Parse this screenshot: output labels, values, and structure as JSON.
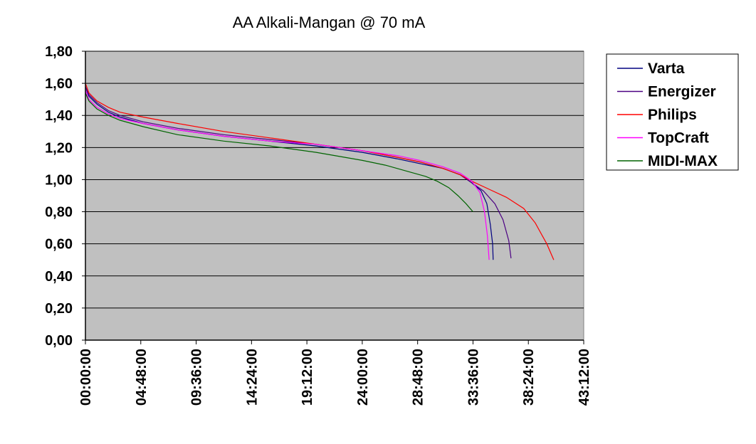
{
  "chart_data": {
    "type": "line",
    "title": "AA Alkali-Mangan @ 70 mA",
    "xlabel": "",
    "ylabel": "",
    "x_unit": "hours",
    "xlim": [
      0,
      43.2
    ],
    "ylim": [
      0,
      1.8
    ],
    "x_ticks": [
      {
        "value": 0,
        "label": "00:00:00"
      },
      {
        "value": 4.8,
        "label": "04:48:00"
      },
      {
        "value": 9.6,
        "label": "09:36:00"
      },
      {
        "value": 14.4,
        "label": "14:24:00"
      },
      {
        "value": 19.2,
        "label": "19:12:00"
      },
      {
        "value": 24.0,
        "label": "24:00:00"
      },
      {
        "value": 28.8,
        "label": "28:48:00"
      },
      {
        "value": 33.6,
        "label": "33:36:00"
      },
      {
        "value": 38.4,
        "label": "38:24:00"
      },
      {
        "value": 43.2,
        "label": "43:12:00"
      }
    ],
    "y_ticks": [
      {
        "value": 0,
        "label": "0,00"
      },
      {
        "value": 0.2,
        "label": "0,20"
      },
      {
        "value": 0.4,
        "label": "0,40"
      },
      {
        "value": 0.6,
        "label": "0,60"
      },
      {
        "value": 0.8,
        "label": "0,80"
      },
      {
        "value": 1.0,
        "label": "1,00"
      },
      {
        "value": 1.2,
        "label": "1,20"
      },
      {
        "value": 1.4,
        "label": "1,40"
      },
      {
        "value": 1.6,
        "label": "1,60"
      },
      {
        "value": 1.8,
        "label": "1,80"
      }
    ],
    "grid": {
      "horizontal": true,
      "vertical": false
    },
    "plot_background": "#c0c0c0",
    "legend_position": "right",
    "series": [
      {
        "name": "Varta",
        "color": "#000080",
        "points": [
          [
            0,
            1.58
          ],
          [
            0.3,
            1.52
          ],
          [
            1,
            1.47
          ],
          [
            2,
            1.42
          ],
          [
            3,
            1.39
          ],
          [
            5,
            1.35
          ],
          [
            8,
            1.31
          ],
          [
            12,
            1.27
          ],
          [
            16,
            1.24
          ],
          [
            20,
            1.21
          ],
          [
            24,
            1.17
          ],
          [
            27,
            1.13
          ],
          [
            29,
            1.1
          ],
          [
            31,
            1.07
          ],
          [
            32.5,
            1.03
          ],
          [
            33.5,
            0.98
          ],
          [
            34.3,
            0.93
          ],
          [
            34.8,
            0.85
          ],
          [
            35.1,
            0.72
          ],
          [
            35.3,
            0.6
          ],
          [
            35.35,
            0.5
          ]
        ]
      },
      {
        "name": "Energizer",
        "color": "#4b0082",
        "points": [
          [
            0,
            1.58
          ],
          [
            0.3,
            1.53
          ],
          [
            1,
            1.48
          ],
          [
            2,
            1.43
          ],
          [
            3,
            1.4
          ],
          [
            5,
            1.36
          ],
          [
            8,
            1.32
          ],
          [
            12,
            1.28
          ],
          [
            16,
            1.25
          ],
          [
            20,
            1.22
          ],
          [
            24,
            1.18
          ],
          [
            27,
            1.14
          ],
          [
            29,
            1.11
          ],
          [
            31,
            1.07
          ],
          [
            32.5,
            1.03
          ],
          [
            33.5,
            0.98
          ],
          [
            34.5,
            0.93
          ],
          [
            35.5,
            0.85
          ],
          [
            36.2,
            0.75
          ],
          [
            36.7,
            0.62
          ],
          [
            36.9,
            0.51
          ]
        ]
      },
      {
        "name": "Philips",
        "color": "#ff0000",
        "points": [
          [
            0,
            1.6
          ],
          [
            0.3,
            1.54
          ],
          [
            1,
            1.49
          ],
          [
            2,
            1.45
          ],
          [
            3,
            1.42
          ],
          [
            5,
            1.39
          ],
          [
            8,
            1.35
          ],
          [
            12,
            1.3
          ],
          [
            16,
            1.26
          ],
          [
            20,
            1.22
          ],
          [
            24,
            1.18
          ],
          [
            27,
            1.14
          ],
          [
            29,
            1.11
          ],
          [
            31,
            1.07
          ],
          [
            32.5,
            1.03
          ],
          [
            33.5,
            0.99
          ],
          [
            35,
            0.94
          ],
          [
            36.5,
            0.89
          ],
          [
            38,
            0.82
          ],
          [
            39,
            0.73
          ],
          [
            40,
            0.6
          ],
          [
            40.6,
            0.5
          ]
        ]
      },
      {
        "name": "TopCraft",
        "color": "#ff00ff",
        "points": [
          [
            0,
            1.56
          ],
          [
            0.3,
            1.5
          ],
          [
            1,
            1.45
          ],
          [
            2,
            1.41
          ],
          [
            3,
            1.38
          ],
          [
            5,
            1.35
          ],
          [
            8,
            1.31
          ],
          [
            12,
            1.27
          ],
          [
            16,
            1.24
          ],
          [
            20,
            1.22
          ],
          [
            24,
            1.18
          ],
          [
            27,
            1.15
          ],
          [
            29,
            1.12
          ],
          [
            31,
            1.08
          ],
          [
            32.5,
            1.04
          ],
          [
            33.5,
            0.99
          ],
          [
            34.2,
            0.92
          ],
          [
            34.6,
            0.8
          ],
          [
            34.85,
            0.65
          ],
          [
            35.0,
            0.5
          ]
        ]
      },
      {
        "name": "MIDI-MAX",
        "color": "#006400",
        "points": [
          [
            0,
            1.54
          ],
          [
            0.3,
            1.49
          ],
          [
            1,
            1.44
          ],
          [
            2,
            1.4
          ],
          [
            3,
            1.37
          ],
          [
            5,
            1.33
          ],
          [
            8,
            1.28
          ],
          [
            12,
            1.24
          ],
          [
            16,
            1.21
          ],
          [
            20,
            1.17
          ],
          [
            24,
            1.12
          ],
          [
            26,
            1.09
          ],
          [
            28,
            1.05
          ],
          [
            29.5,
            1.02
          ],
          [
            30.5,
            0.99
          ],
          [
            31.5,
            0.95
          ],
          [
            32.3,
            0.9
          ],
          [
            33,
            0.85
          ],
          [
            33.6,
            0.8
          ]
        ]
      }
    ]
  }
}
